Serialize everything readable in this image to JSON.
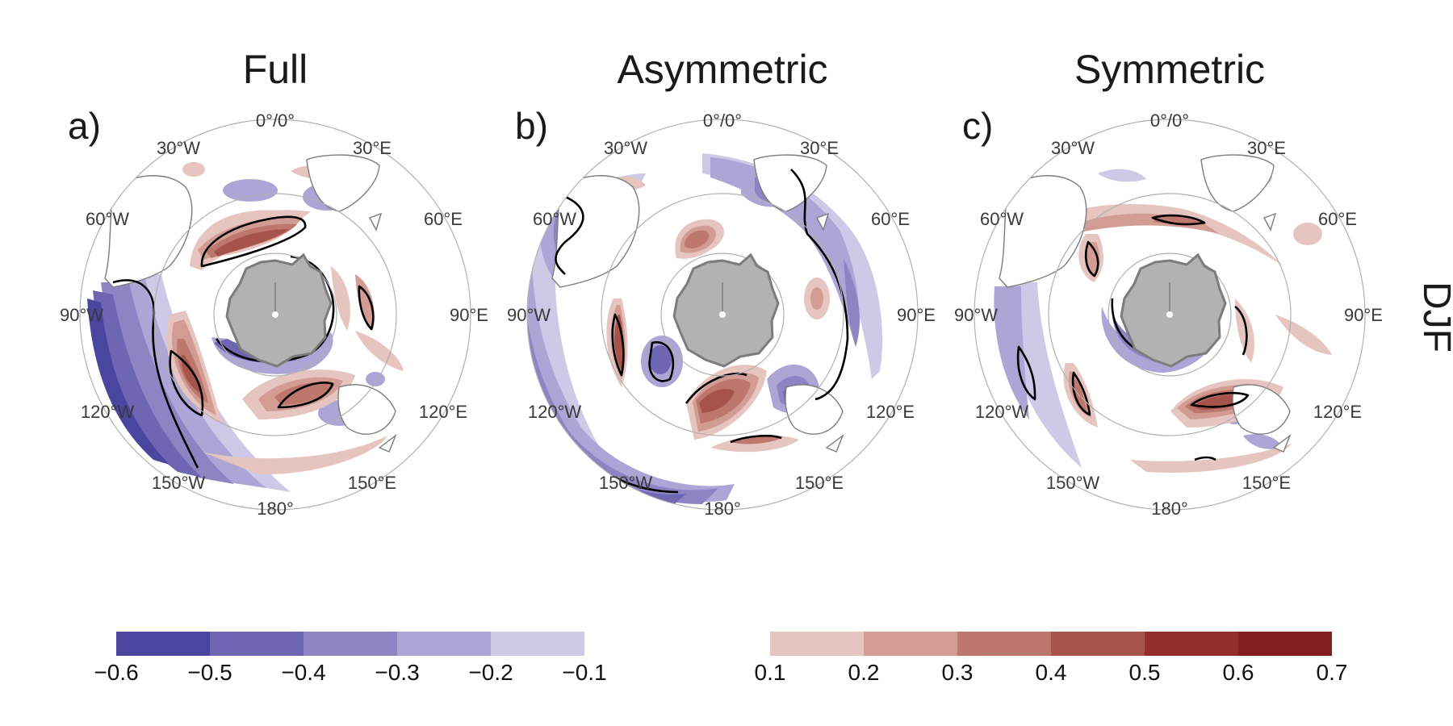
{
  "figure": {
    "season_label": "DJF",
    "projection": "south-polar-stereographic",
    "panels": [
      {
        "id": "full",
        "title": "Full",
        "letter": "a)",
        "lon_labels": [
          "0°/0°",
          "30°E",
          "60°E",
          "90°E",
          "120°E",
          "150°E",
          "180°",
          "150°W",
          "120°W",
          "90°W",
          "60°W",
          "30°W"
        ]
      },
      {
        "id": "asymmetric",
        "title": "Asymmetric",
        "letter": "b)",
        "lon_labels": [
          "0°/0°",
          "30°E",
          "60°E",
          "90°E",
          "120°E",
          "150°E",
          "180°",
          "150°W",
          "120°W",
          "90°W",
          "60°W",
          "30°W"
        ]
      },
      {
        "id": "symmetric",
        "title": "Symmetric",
        "letter": "c)",
        "lon_labels": [
          "0°/0°",
          "30°E",
          "60°E",
          "90°E",
          "120°E",
          "150°E",
          "180°",
          "150°W",
          "120°W",
          "90°W",
          "60°W",
          "30°W"
        ]
      }
    ],
    "colorbar_negative": {
      "ticks": [
        "−0.6",
        "−0.5",
        "−0.4",
        "−0.3",
        "−0.2",
        "−0.1"
      ],
      "colors": [
        "#4a46a0",
        "#6e66b2",
        "#8e84c4",
        "#ada5d5",
        "#cdc9e6"
      ]
    },
    "colorbar_positive": {
      "ticks": [
        "0.1",
        "0.2",
        "0.3",
        "0.4",
        "0.5",
        "0.6",
        "0.7"
      ],
      "colors": [
        "#e6c4bf",
        "#d29c94",
        "#bd776d",
        "#a6544b",
        "#922f2c",
        "#831d20"
      ]
    },
    "colors": {
      "land": "#b2b2b2",
      "coast": "#7c7c7c",
      "grid": "#b0b0b0",
      "significance": "#000000"
    }
  }
}
